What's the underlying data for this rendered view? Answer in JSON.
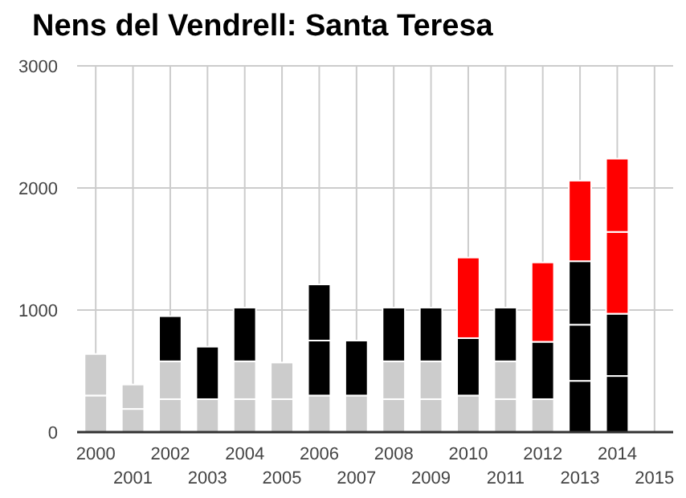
{
  "chart_data": {
    "type": "bar",
    "title": "Nens del Vendrell: Santa Teresa",
    "stacked": true,
    "categories": [
      "2000",
      "2001",
      "2002",
      "2003",
      "2004",
      "2005",
      "2006",
      "2007",
      "2008",
      "2009",
      "2010",
      "2011",
      "2012",
      "2013",
      "2014",
      "2015"
    ],
    "series": [
      {
        "values": [
          300,
          190,
          270,
          270,
          270,
          270,
          300,
          300,
          270,
          270,
          300,
          270,
          270,
          420,
          460,
          null
        ],
        "colors": [
          "#cccccc",
          "#cccccc",
          "#cccccc",
          "#cccccc",
          "#cccccc",
          "#cccccc",
          "#cccccc",
          "#cccccc",
          "#cccccc",
          "#cccccc",
          "#cccccc",
          "#cccccc",
          "#cccccc",
          "#000000",
          "#000000",
          null
        ]
      },
      {
        "values": [
          340,
          200,
          310,
          430,
          310,
          300,
          450,
          450,
          310,
          310,
          470,
          310,
          470,
          460,
          510,
          null
        ],
        "colors": [
          "#cccccc",
          "#cccccc",
          "#cccccc",
          "#000000",
          "#cccccc",
          "#cccccc",
          "#000000",
          "#000000",
          "#cccccc",
          "#cccccc",
          "#000000",
          "#cccccc",
          "#000000",
          "#000000",
          "#000000",
          null
        ]
      },
      {
        "values": [
          null,
          null,
          370,
          null,
          440,
          null,
          460,
          null,
          440,
          440,
          660,
          440,
          650,
          520,
          670,
          null
        ],
        "colors": [
          null,
          null,
          "#000000",
          null,
          "#000000",
          null,
          "#000000",
          null,
          "#000000",
          "#000000",
          "#ff0000",
          "#000000",
          "#ff0000",
          "#000000",
          "#ff0000",
          null
        ]
      },
      {
        "values": [
          null,
          null,
          null,
          null,
          null,
          null,
          null,
          null,
          null,
          null,
          null,
          null,
          null,
          660,
          600,
          null
        ],
        "colors": [
          null,
          null,
          null,
          null,
          null,
          null,
          null,
          null,
          null,
          null,
          null,
          null,
          null,
          "#ff0000",
          "#ff0000",
          null
        ]
      }
    ],
    "ylim": [
      0,
      3000
    ],
    "yticks": [
      0,
      1000,
      2000,
      3000
    ],
    "grid": true
  }
}
